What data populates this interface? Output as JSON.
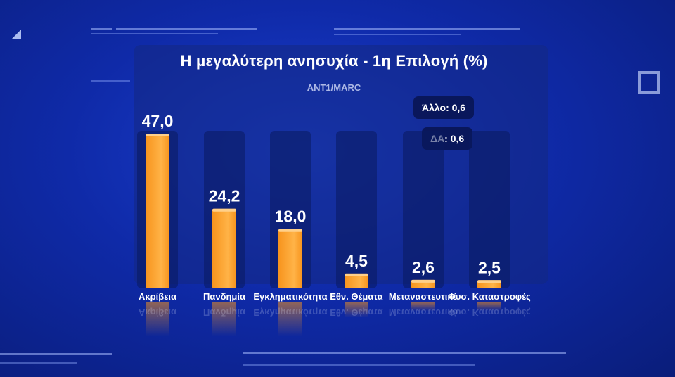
{
  "title": "Η μεγαλύτερη ανησυχία - 1η Επιλογή (%)",
  "source": "ANT1/MARC",
  "other_boxes": {
    "allo": "Άλλο: 0,6",
    "da": "ΔΑ: 0,6"
  },
  "colors": {
    "bar": "#f7941d",
    "bar_highlight": "#ffb347",
    "background": "#0f2aa8"
  },
  "chart_data": {
    "type": "bar",
    "title": "Η μεγαλύτερη ανησυχία - 1η Επιλογή (%)",
    "categories": [
      "Ακρίβεια",
      "Πανδημία",
      "Εγκληματικότητα",
      "Εθν. Θέματα",
      "Μεταναστευτικό",
      "Φυσ. Καταστροφές"
    ],
    "values": [
      47.0,
      24.2,
      18.0,
      4.5,
      2.6,
      2.5
    ],
    "value_labels": [
      "47,0",
      "24,2",
      "18,0",
      "4,5",
      "2,6",
      "2,5"
    ],
    "xlabel": "",
    "ylabel": "",
    "ylim": [
      0,
      47.0
    ],
    "grid": false,
    "legend": "none"
  }
}
